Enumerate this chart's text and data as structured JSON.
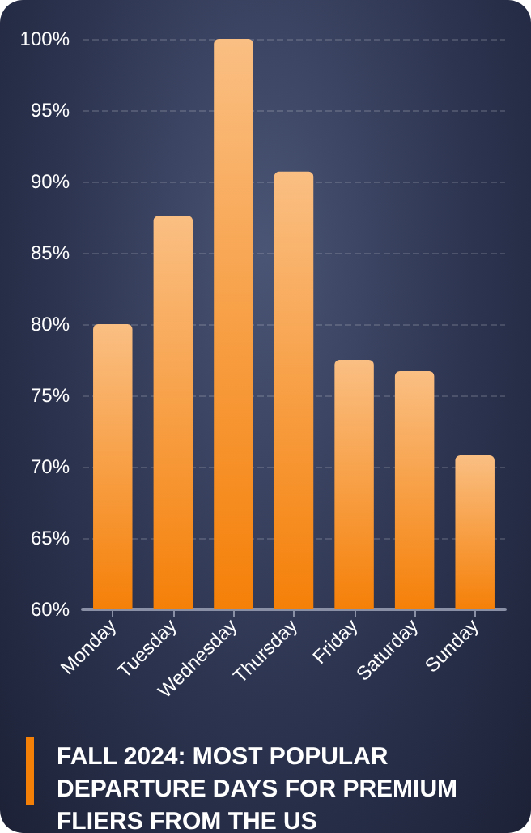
{
  "chart_data": {
    "type": "bar",
    "title": "FALL 2024: MOST POPULAR DEPARTURE DAYS FOR PREMIUM FLIERS FROM THE US",
    "categories": [
      "Monday",
      "Tuesday",
      "Wednesday",
      "Thursday",
      "Friday",
      "Saturday",
      "Sunday"
    ],
    "values": [
      80,
      87.6,
      100,
      90.7,
      77.5,
      76.7,
      70.8
    ],
    "color": "#f58008",
    "ylim": [
      60,
      100
    ],
    "yticks": [
      {
        "value": 60,
        "label": "60%"
      },
      {
        "value": 65,
        "label": "65%"
      },
      {
        "value": 70,
        "label": "70%"
      },
      {
        "value": 75,
        "label": "75%"
      },
      {
        "value": 80,
        "label": "80%"
      },
      {
        "value": 85,
        "label": "85%"
      },
      {
        "value": 90,
        "label": "90%"
      },
      {
        "value": 95,
        "label": "95%"
      },
      {
        "value": 100,
        "label": "100%"
      }
    ],
    "grid": "y"
  }
}
